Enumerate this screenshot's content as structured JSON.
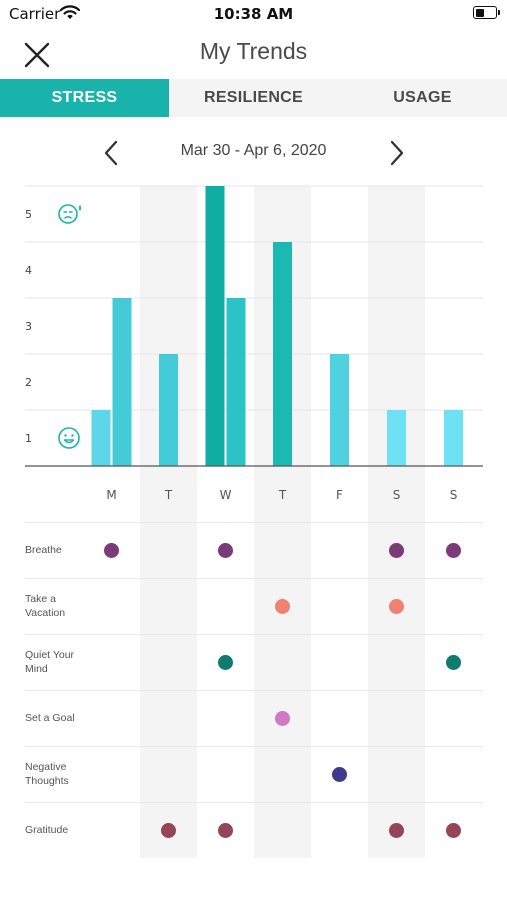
{
  "status_bar": {
    "carrier": "Carrier",
    "time": "10:38 AM"
  },
  "nav": {
    "title": "My Trends",
    "close_icon": "close-icon"
  },
  "tabs": [
    {
      "label": "STRESS",
      "active": true
    },
    {
      "label": "RESILIENCE",
      "active": false
    },
    {
      "label": "USAGE",
      "active": false
    }
  ],
  "date_nav": {
    "range": "Mar 30 - Apr 6, 2020",
    "prev_icon": "chevron-left-icon",
    "next_icon": "chevron-right-icon"
  },
  "chart_data": {
    "type": "bar",
    "categories": [
      "M",
      "T",
      "W",
      "T",
      "F",
      "S",
      "S"
    ],
    "y_ticks": [
      "1",
      "2",
      "3",
      "4",
      "5"
    ],
    "ylim": [
      0,
      5
    ],
    "bars": [
      {
        "day": 0,
        "value": 1,
        "color": "#5ed6ea"
      },
      {
        "day": 0,
        "value": 3,
        "color": "#44cbd8"
      },
      {
        "day": 1,
        "value": 2,
        "color": "#44cbd8"
      },
      {
        "day": 2,
        "value": 5,
        "color": "#0fada4"
      },
      {
        "day": 2,
        "value": 3,
        "color": "#2cc3c7"
      },
      {
        "day": 3,
        "value": 4,
        "color": "#1cb8b2"
      },
      {
        "day": 4,
        "value": 2,
        "color": "#4fd1df"
      },
      {
        "day": 5,
        "value": 1,
        "color": "#6ee2f4"
      },
      {
        "day": 6,
        "value": 1,
        "color": "#6ee2f4"
      }
    ],
    "grid": true,
    "icons": {
      "top": "stressed-face-icon",
      "bottom": "happy-face-icon"
    }
  },
  "activities": [
    {
      "label": "Breathe",
      "color": "#7b3a78",
      "days": [
        0,
        2,
        5,
        6
      ]
    },
    {
      "label": "Take a Vacation",
      "color": "#f08070",
      "days": [
        3,
        5
      ]
    },
    {
      "label": "Quiet Your Mind",
      "color": "#0e7a70",
      "days": [
        2,
        6
      ]
    },
    {
      "label": "Set a Goal",
      "color": "#d279c4",
      "days": [
        3
      ]
    },
    {
      "label": "Negative Thoughts",
      "color": "#3e3a8e",
      "days": [
        4
      ]
    },
    {
      "label": "Gratitude",
      "color": "#964457",
      "days": [
        1,
        2,
        5,
        6
      ]
    }
  ]
}
